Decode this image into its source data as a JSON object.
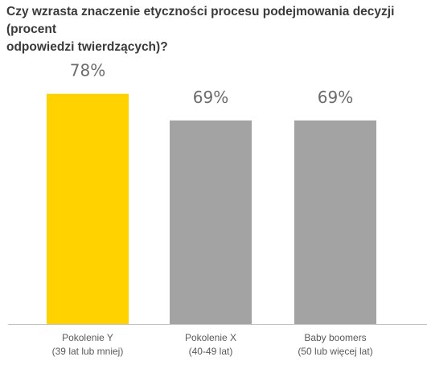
{
  "chart_data": {
    "type": "bar",
    "title": "Czy wzrasta znaczenie etyczności procesu podejmowania decyzji (procent odpowiedzi twierdzących)?",
    "title_lines": [
      "Czy wzrasta znaczenie etyczności procesu podejmowania decyzji (procent",
      "odpowiedzi twierdzących)?"
    ],
    "categories": [
      [
        "Pokolenie Y",
        "(39 lat lub mniej)"
      ],
      [
        "Pokolenie X",
        "(40-49 lat)"
      ],
      [
        "Baby boomers",
        "(50 lub więcej lat)"
      ]
    ],
    "values": [
      78,
      69,
      69
    ],
    "data_labels": [
      "78%",
      "69%",
      "69%"
    ],
    "colors": [
      "#ffd200",
      "#a3a3a3",
      "#a3a3a3"
    ],
    "ylim": [
      0,
      100
    ],
    "grid": false,
    "legend": "none",
    "axis_color": "#bfbfbf"
  }
}
